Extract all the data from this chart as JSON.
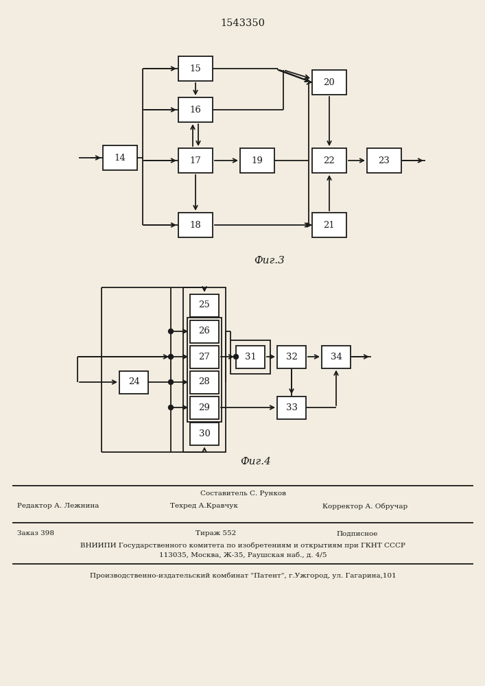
{
  "title": "1543350",
  "fig3_label": "Фиг.3",
  "fig4_label": "Фиг.4",
  "bg_color": "#f2ede0",
  "box_color": "#ffffff",
  "line_color": "#1a1a1a"
}
